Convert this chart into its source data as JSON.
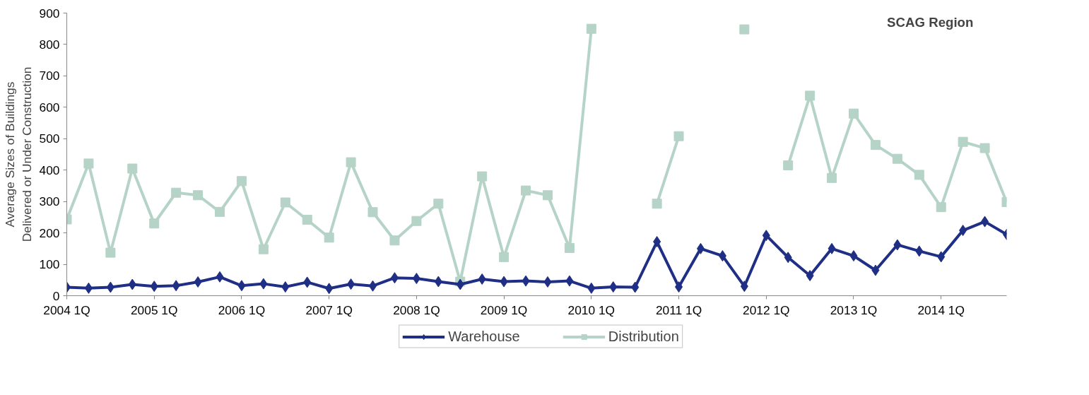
{
  "chart_data": {
    "type": "line",
    "title": "SCAG Region",
    "ylabel": "Average Sizes of Buildings Delivered or Under Construction",
    "categories": [
      "2004 1Q",
      null,
      null,
      null,
      "2005 1Q",
      null,
      null,
      null,
      "2006 1Q",
      null,
      null,
      null,
      "2007 1Q",
      null,
      null,
      null,
      "2008 1Q",
      null,
      null,
      null,
      "2009 1Q",
      null,
      null,
      null,
      "2010 1Q",
      null,
      null,
      null,
      "2011 1Q",
      null,
      null,
      null,
      "2012 1Q",
      null,
      null,
      null,
      "2013 1Q",
      null,
      null,
      null,
      "2014 1Q",
      null,
      null,
      null
    ],
    "series": [
      {
        "name": "Warehouse",
        "color": "#1f2f86",
        "marker": "diamond",
        "values": [
          27,
          24,
          27,
          36,
          30,
          32,
          44,
          60,
          32,
          38,
          28,
          43,
          23,
          37,
          31,
          57,
          55,
          45,
          36,
          53,
          45,
          47,
          44,
          47,
          24,
          28,
          27,
          172,
          28,
          150,
          127,
          30,
          192,
          122,
          64,
          150,
          127,
          81,
          162,
          142,
          124,
          208,
          236,
          195
        ]
      },
      {
        "name": "Distribution",
        "color": "#b5d3c7",
        "marker": "square",
        "values": [
          243,
          421,
          137,
          405,
          230,
          328,
          320,
          267,
          365,
          148,
          297,
          242,
          185,
          425,
          266,
          176,
          238,
          293,
          45,
          380,
          123,
          335,
          320,
          152,
          850,
          null,
          null,
          293,
          508,
          null,
          null,
          848,
          null,
          415,
          637,
          375,
          580,
          480,
          436,
          385,
          282,
          490,
          470,
          298
        ]
      }
    ],
    "ylim": [
      0,
      900
    ],
    "yticks": [
      0,
      100,
      200,
      300,
      400,
      500,
      600,
      700,
      800,
      900
    ],
    "grid": false,
    "legend": "bottom",
    "line_style": "solid"
  }
}
